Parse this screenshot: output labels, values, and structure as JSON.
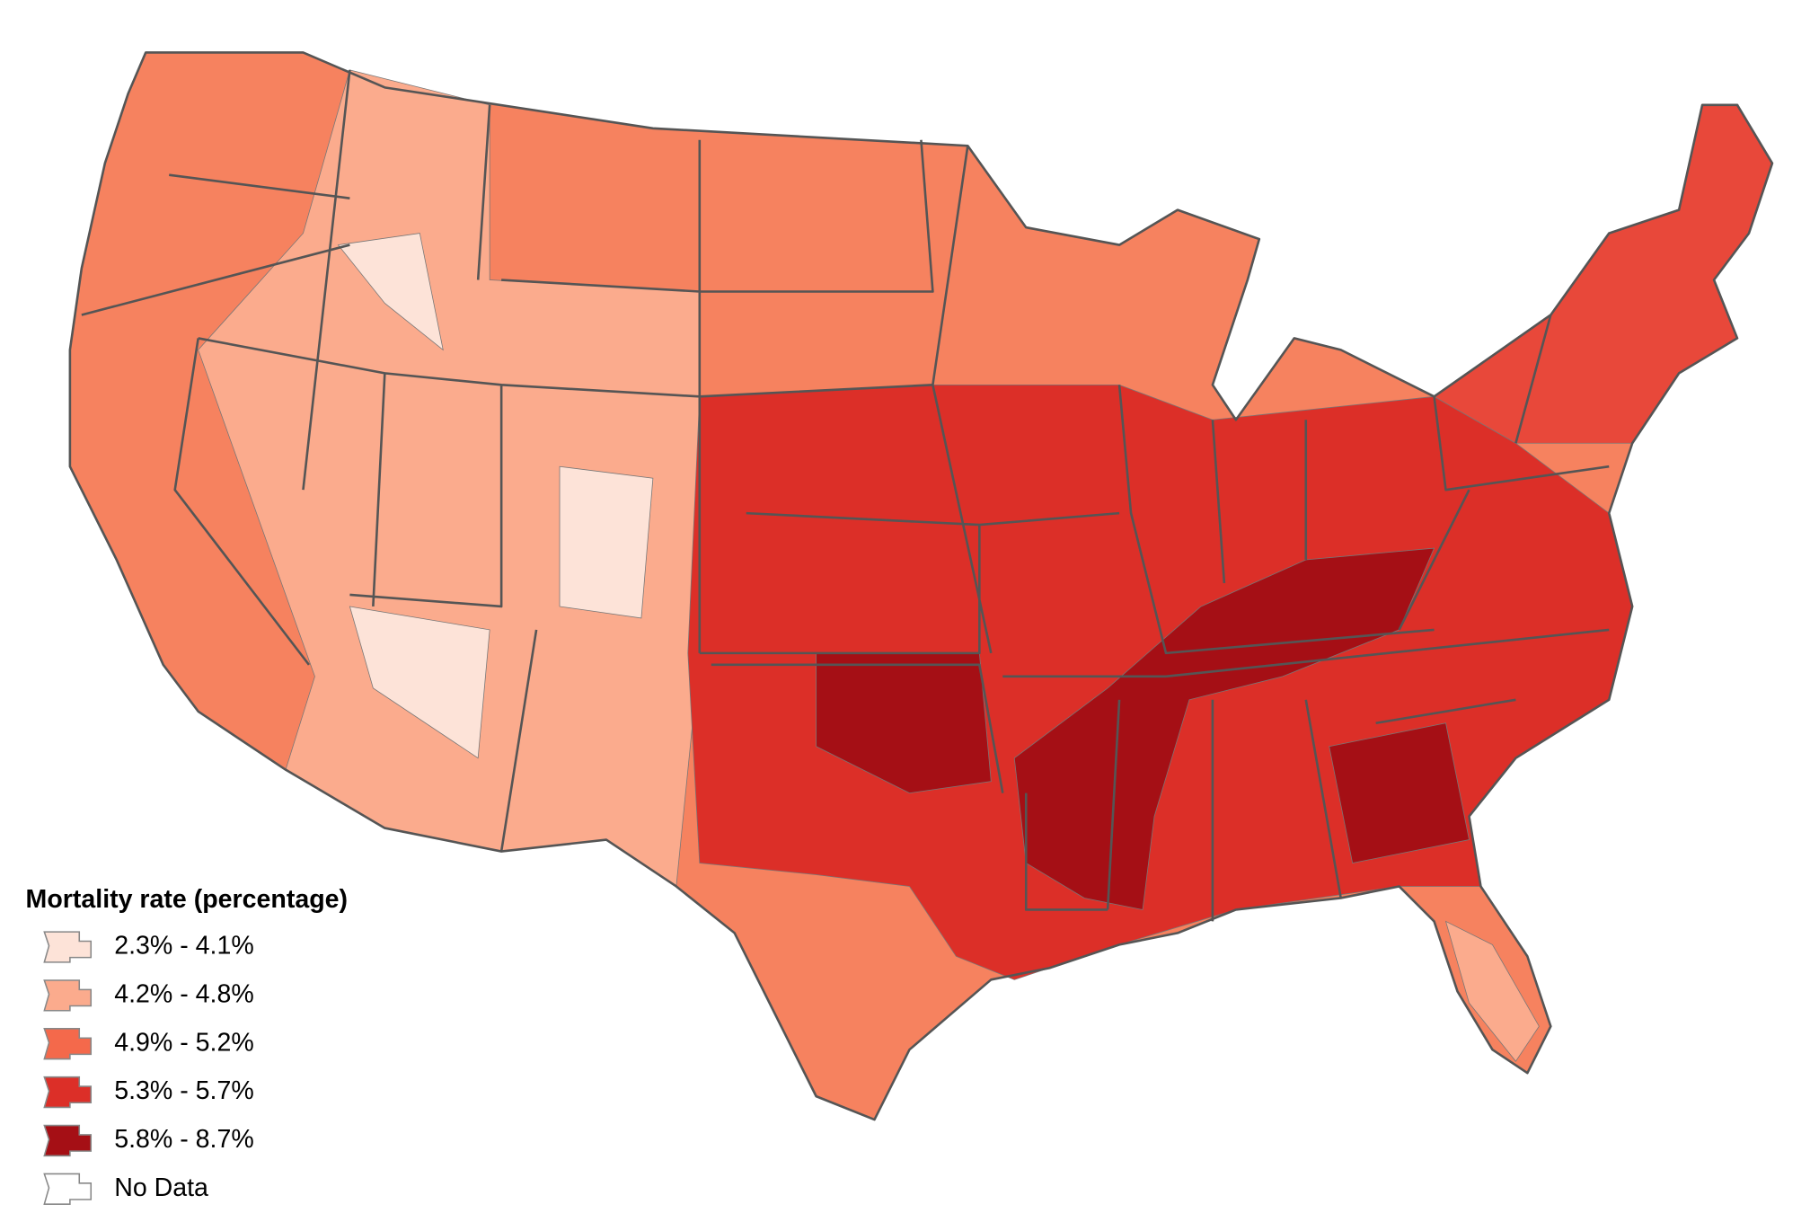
{
  "legend": {
    "title": "Mortality rate (percentage)",
    "items": [
      {
        "label": "2.3% - 4.1%",
        "color": "#fde3d8"
      },
      {
        "label": "4.2% - 4.8%",
        "color": "#fbab8d"
      },
      {
        "label": "4.9% - 5.2%",
        "color": "#f4694b"
      },
      {
        "label": "5.3% - 5.7%",
        "color": "#dc2f28"
      },
      {
        "label": "5.8% - 8.7%",
        "color": "#a50f15"
      },
      {
        "label": "No Data",
        "color": "#ffffff"
      }
    ]
  }
}
